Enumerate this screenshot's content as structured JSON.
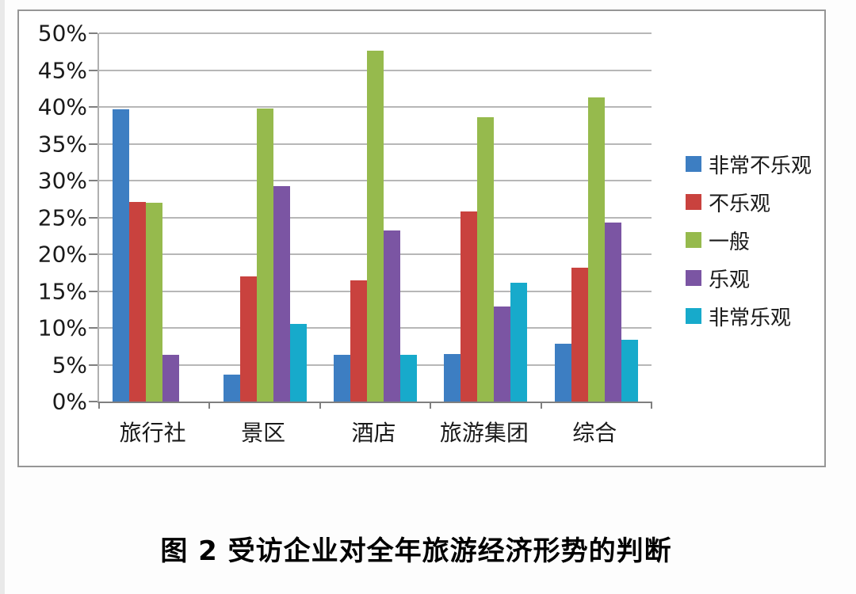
{
  "figure": {
    "caption": "图 2  受访企业对全年旅游经济形势的判断"
  },
  "chart_data": {
    "type": "bar",
    "title": "",
    "xlabel": "",
    "ylabel": "",
    "categories": [
      "旅行社",
      "景区",
      "酒店",
      "旅游集团",
      "综合"
    ],
    "series": [
      {
        "name": "非常不乐观",
        "color": "#3d7ec2",
        "values": [
          39.7,
          3.7,
          6.3,
          6.5,
          7.8
        ]
      },
      {
        "name": "不乐观",
        "color": "#c9423e",
        "values": [
          27.1,
          17.0,
          16.4,
          25.8,
          18.2
        ]
      },
      {
        "name": "一般",
        "color": "#96ba4d",
        "values": [
          27.0,
          39.8,
          47.6,
          38.6,
          41.3
        ]
      },
      {
        "name": "乐观",
        "color": "#7b55a3",
        "values": [
          6.3,
          29.3,
          23.2,
          12.9,
          24.3
        ]
      },
      {
        "name": "非常乐观",
        "color": "#17aacb",
        "values": [
          0,
          10.5,
          6.3,
          16.1,
          8.4
        ]
      }
    ],
    "ylim": [
      0,
      50
    ],
    "y_ticks": [
      "0%",
      "5%",
      "10%",
      "15%",
      "20%",
      "25%",
      "30%",
      "35%",
      "40%",
      "45%",
      "50%"
    ],
    "grid": true,
    "legend_position": "right",
    "colors": {
      "gridline": "#b7b7b7",
      "axis": "#7f7f7f",
      "frame_border": "#969696"
    }
  }
}
